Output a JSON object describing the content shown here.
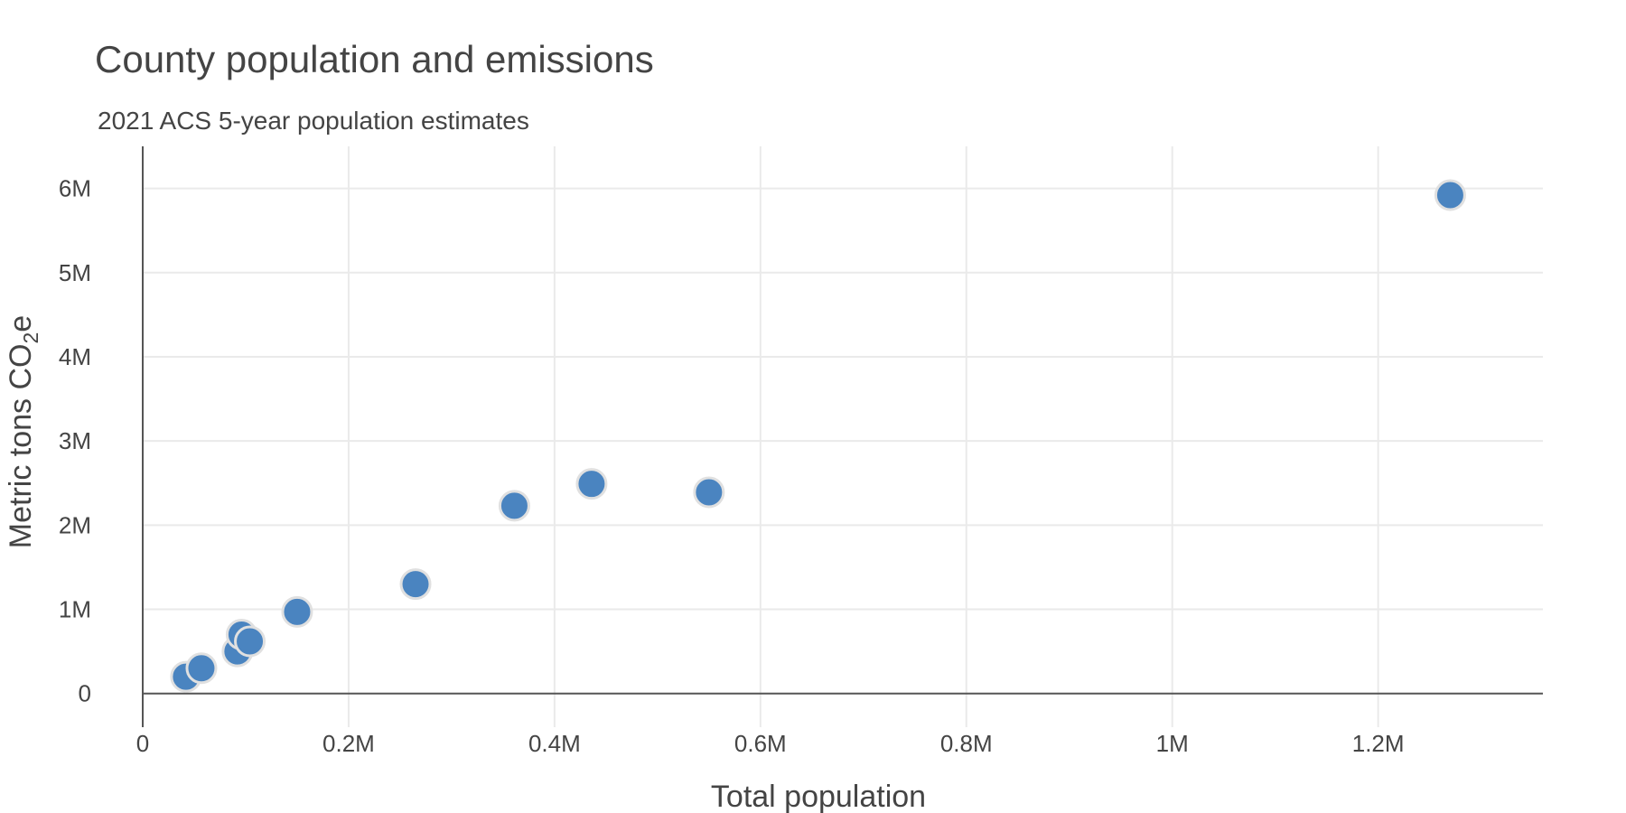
{
  "chart_data": {
    "type": "scatter",
    "title": "County population and emissions",
    "subtitle": "2021 ACS 5-year population estimates",
    "xlabel": "Total population",
    "ylabel": {
      "main": "Metric tons CO",
      "sub": "2",
      "suffix": "e"
    },
    "xlim": [
      0,
      1360000
    ],
    "ylim": [
      -400000,
      6500000
    ],
    "x_ticks": [
      {
        "value": 0,
        "label": "0"
      },
      {
        "value": 200000,
        "label": "0.2M"
      },
      {
        "value": 400000,
        "label": "0.4M"
      },
      {
        "value": 600000,
        "label": "0.6M"
      },
      {
        "value": 800000,
        "label": "0.8M"
      },
      {
        "value": 1000000,
        "label": "1M"
      },
      {
        "value": 1200000,
        "label": "1.2M"
      }
    ],
    "y_ticks": [
      {
        "value": 0,
        "label": "0"
      },
      {
        "value": 1000000,
        "label": "1M"
      },
      {
        "value": 2000000,
        "label": "2M"
      },
      {
        "value": 3000000,
        "label": "3M"
      },
      {
        "value": 4000000,
        "label": "4M"
      },
      {
        "value": 5000000,
        "label": "5M"
      },
      {
        "value": 6000000,
        "label": "6M"
      }
    ],
    "grid": true,
    "legend": "none",
    "colors": {
      "point": "#4a84c0",
      "point_outline": "#e0e0e0"
    },
    "points": [
      {
        "x": 42000,
        "y": 200000
      },
      {
        "x": 57000,
        "y": 300000
      },
      {
        "x": 92000,
        "y": 500000
      },
      {
        "x": 96000,
        "y": 700000
      },
      {
        "x": 104000,
        "y": 620000
      },
      {
        "x": 150000,
        "y": 970000
      },
      {
        "x": 265000,
        "y": 1300000
      },
      {
        "x": 361000,
        "y": 2230000
      },
      {
        "x": 436000,
        "y": 2490000
      },
      {
        "x": 550000,
        "y": 2390000
      },
      {
        "x": 1270000,
        "y": 5920000
      }
    ]
  }
}
